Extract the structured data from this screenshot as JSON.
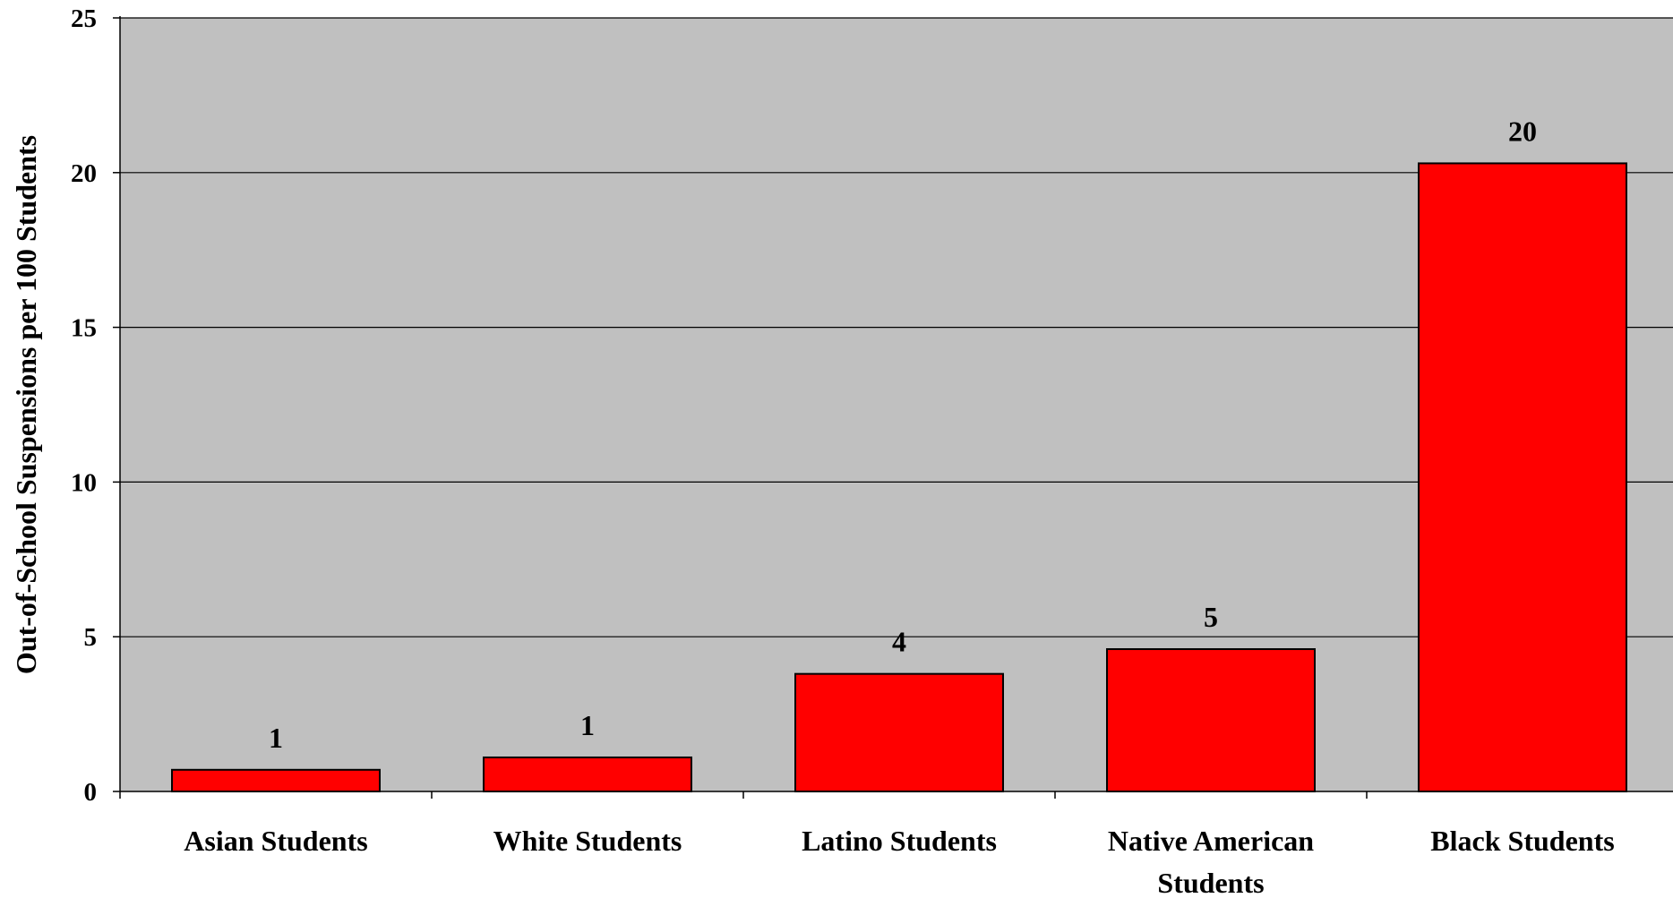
{
  "chart_data": {
    "type": "bar",
    "title": "",
    "xlabel": "",
    "ylabel": "Out-of-School Suspensions per 100 Students",
    "categories": [
      [
        "Asian Students"
      ],
      [
        "White Students"
      ],
      [
        "Latino Students"
      ],
      [
        "Native American",
        "Students"
      ],
      [
        "Black Students"
      ]
    ],
    "values": [
      0.7,
      1.1,
      3.8,
      4.6,
      20.3
    ],
    "data_labels": [
      "1",
      "1",
      "4",
      "5",
      "20"
    ],
    "ylim": [
      0,
      25
    ],
    "yticks": [
      0,
      5,
      10,
      15,
      20,
      25
    ],
    "grid": true,
    "legend": "none",
    "colors": {
      "bar_fill": "#ff0000",
      "bar_stroke": "#000000",
      "plot_background": "#c0c0c0",
      "gridline": "#000000"
    }
  }
}
